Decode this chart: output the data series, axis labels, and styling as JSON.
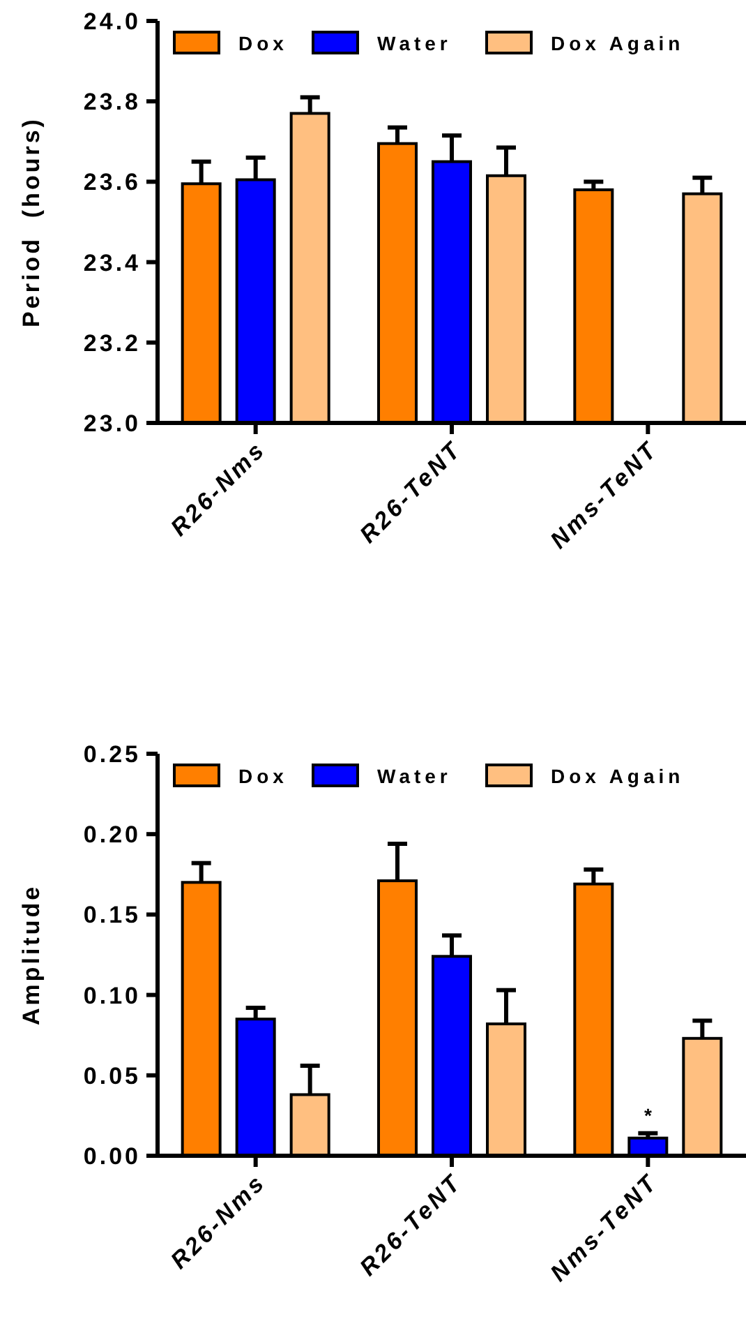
{
  "chart_data": [
    {
      "type": "bar",
      "ylabel": "Period  (hours)",
      "categories": [
        "R26-Nms",
        "R26-TeNT",
        "Nms-TeNT"
      ],
      "ylim": [
        23,
        24
      ],
      "yticks": [
        {
          "value": 23,
          "label": "23.0"
        },
        {
          "value": 23.2,
          "label": "23.2"
        },
        {
          "value": 23.4,
          "label": "23.4"
        },
        {
          "value": 23.6,
          "label": "23.6"
        },
        {
          "value": 23.8,
          "label": "23.8"
        },
        {
          "value": 24,
          "label": "24.0"
        }
      ],
      "legend": "top",
      "grid": false,
      "series": [
        {
          "name": "Dox",
          "color": "#ff7f00",
          "values": [
            23.595,
            23.695,
            23.58
          ],
          "errors": [
            [
              23.595,
              23.65
            ],
            [
              23.695,
              23.735
            ],
            [
              23.58,
              23.6
            ]
          ]
        },
        {
          "name": "Water",
          "color": "#0000ff",
          "values": [
            23.605,
            23.65,
            null
          ],
          "errors": [
            [
              23.605,
              23.66
            ],
            [
              23.65,
              23.715
            ],
            null
          ]
        },
        {
          "name": "Dox Again",
          "color": "#ffbf80",
          "values": [
            23.77,
            23.615,
            23.57
          ],
          "errors": [
            [
              23.77,
              23.81
            ],
            [
              23.615,
              23.685
            ],
            [
              23.57,
              23.61
            ]
          ]
        }
      ]
    },
    {
      "type": "bar",
      "ylabel": "Amplitude",
      "categories": [
        "R26-Nms",
        "R26-TeNT",
        "Nms-TeNT"
      ],
      "ylim": [
        0,
        0.25
      ],
      "yticks": [
        {
          "value": 0,
          "label": "0.00"
        },
        {
          "value": 0.05,
          "label": "0.05"
        },
        {
          "value": 0.1,
          "label": "0.10"
        },
        {
          "value": 0.15,
          "label": "0.15"
        },
        {
          "value": 0.2,
          "label": "0.20"
        },
        {
          "value": 0.25,
          "label": "0.25"
        }
      ],
      "legend": "top",
      "grid": false,
      "annotations": [
        {
          "text": "*",
          "x": "Nms-TeNT",
          "y": 0.014
        }
      ],
      "series": [
        {
          "name": "Dox",
          "color": "#ff7f00",
          "values": [
            0.17,
            0.171,
            0.169
          ],
          "errors": [
            [
              0.17,
              0.182
            ],
            [
              0.171,
              0.194
            ],
            [
              0.169,
              0.178
            ]
          ]
        },
        {
          "name": "Water",
          "color": "#0000ff",
          "values": [
            0.085,
            0.124,
            0.011
          ],
          "errors": [
            [
              0.085,
              0.092
            ],
            [
              0.124,
              0.137
            ],
            [
              0.011,
              0.014
            ]
          ]
        },
        {
          "name": "Dox Again",
          "color": "#ffbf80",
          "values": [
            0.038,
            0.082,
            0.073
          ],
          "errors": [
            [
              0.038,
              0.056
            ],
            [
              0.082,
              0.103
            ],
            [
              0.073,
              0.084
            ]
          ]
        }
      ]
    }
  ]
}
